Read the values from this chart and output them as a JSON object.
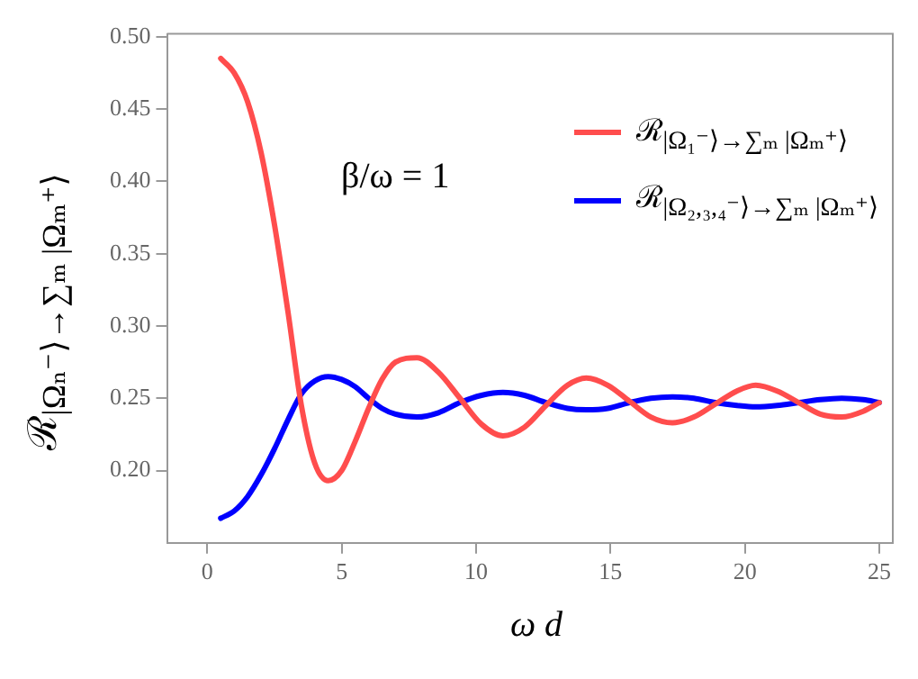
{
  "chart_data": {
    "type": "line",
    "xlabel": "ω d",
    "ylabel": "ℛ$_{|Ωₙ⁻⟩→∑ₘ |Ωₘ⁺⟩}$",
    "annotations": [
      "β/ω = 1"
    ],
    "x": [
      0.5,
      1,
      1.5,
      2,
      2.5,
      3,
      3.5,
      4,
      4.5,
      5,
      5.5,
      6,
      6.5,
      7,
      7.8,
      8.6,
      9.4,
      10.2,
      11,
      11.8,
      12.6,
      13.4,
      14.1,
      14.9,
      15.7,
      16.5,
      17.3,
      18.1,
      18.9,
      19.7,
      20.4,
      21.2,
      22,
      22.8,
      23.6,
      24.4,
      25
    ],
    "series": [
      {
        "name": "ℛ$_{|Ω₁⁻⟩→∑ₘ |Ωₘ⁺⟩}$",
        "color": "#ff4d4d",
        "values": [
          0.485,
          0.475,
          0.455,
          0.42,
          0.37,
          0.31,
          0.245,
          0.205,
          0.193,
          0.2,
          0.22,
          0.243,
          0.263,
          0.275,
          0.278,
          0.268,
          0.25,
          0.232,
          0.224,
          0.23,
          0.245,
          0.259,
          0.264,
          0.259,
          0.248,
          0.237,
          0.233,
          0.237,
          0.246,
          0.255,
          0.259,
          0.255,
          0.247,
          0.239,
          0.237,
          0.241,
          0.247
        ]
      },
      {
        "name": "ℛ$_{|Ω₂,₃,₄⁻⟩→∑ₘ |Ωₘ⁺⟩}$",
        "color": "#0000ff",
        "values": [
          0.167,
          0.172,
          0.182,
          0.197,
          0.215,
          0.235,
          0.253,
          0.262,
          0.265,
          0.263,
          0.258,
          0.25,
          0.243,
          0.239,
          0.237,
          0.24,
          0.247,
          0.252,
          0.254,
          0.252,
          0.247,
          0.243,
          0.242,
          0.243,
          0.247,
          0.25,
          0.251,
          0.25,
          0.247,
          0.245,
          0.244,
          0.245,
          0.247,
          0.249,
          0.25,
          0.249,
          0.247
        ]
      }
    ],
    "xlim": [
      -1.5,
      25.5
    ],
    "xticks": [
      0,
      5,
      10,
      15,
      20,
      25
    ],
    "ylim": [
      0.15,
      0.502
    ],
    "yticks": [
      {
        "value": 0.2,
        "label": "0.20"
      },
      {
        "value": 0.25,
        "label": "0.25"
      },
      {
        "value": 0.3,
        "label": "0.30"
      },
      {
        "value": 0.35,
        "label": "0.35"
      },
      {
        "value": 0.4,
        "label": "0.40"
      },
      {
        "value": 0.45,
        "label": "0.45"
      },
      {
        "value": 0.5,
        "label": "0.50"
      }
    ],
    "grid": false,
    "legend": "top right",
    "marker": "none",
    "line_style": "solid"
  }
}
